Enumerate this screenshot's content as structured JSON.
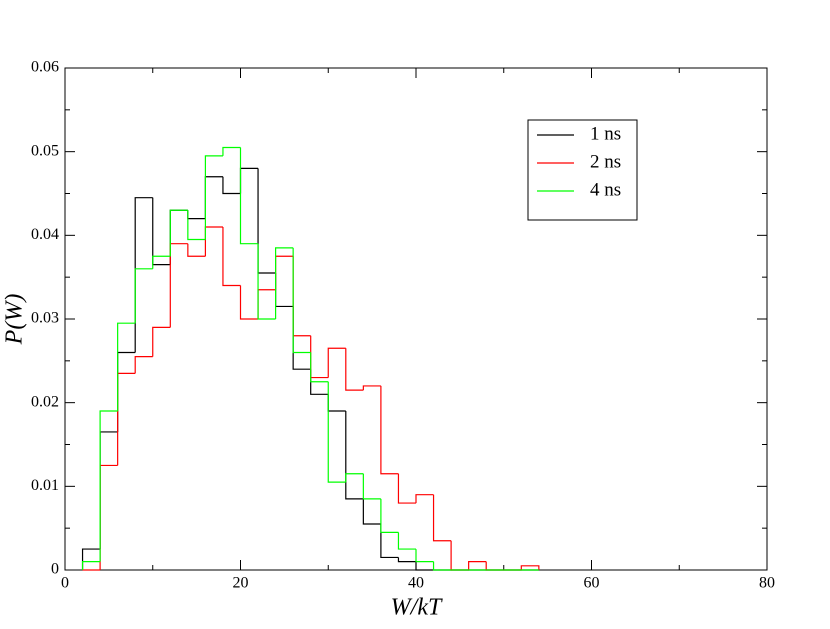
{
  "chart_data": {
    "type": "histogram",
    "xlabel": "W/kT",
    "ylabel": "P(W)",
    "bins": [
      2,
      4,
      6,
      8,
      10,
      12,
      14,
      16,
      18,
      20,
      22,
      24,
      26,
      28,
      30,
      32,
      34,
      36,
      38,
      40,
      42,
      44,
      46,
      48,
      50,
      52,
      54
    ],
    "series": [
      {
        "name": "1 ns",
        "color": "#000000",
        "values": [
          0.0025,
          0.0165,
          0.026,
          0.0445,
          0.0365,
          0.043,
          0.042,
          0.047,
          0.045,
          0.048,
          0.0355,
          0.0315,
          0.024,
          0.021,
          0.019,
          0.0085,
          0.0055,
          0.0015,
          0.001,
          0,
          0,
          0,
          0,
          0,
          0,
          0
        ]
      },
      {
        "name": "2 ns",
        "color": "#ff0000",
        "values": [
          0,
          0.0125,
          0.0235,
          0.0255,
          0.029,
          0.039,
          0.0375,
          0.041,
          0.034,
          0.03,
          0.0335,
          0.0375,
          0.028,
          0.023,
          0.0265,
          0.0215,
          0.022,
          0.0115,
          0.008,
          0.009,
          0.0035,
          0,
          0.001,
          0,
          0,
          0.0005
        ]
      },
      {
        "name": "4 ns",
        "color": "#00ff00",
        "values": [
          0.001,
          0.019,
          0.0295,
          0.036,
          0.0375,
          0.043,
          0.0395,
          0.0495,
          0.0505,
          0.039,
          0.03,
          0.0385,
          0.026,
          0.0225,
          0.0105,
          0.0115,
          0.0085,
          0.0045,
          0.0025,
          0.001,
          0,
          0,
          0,
          0,
          0,
          0
        ]
      }
    ],
    "xlim": [
      0,
      80
    ],
    "xticks": [
      0,
      20,
      40,
      60,
      80
    ],
    "xminorticks": [
      10,
      30,
      50,
      70
    ],
    "ylim": [
      0,
      0.06
    ],
    "yticks": [
      0,
      0.01,
      0.02,
      0.03,
      0.04,
      0.05,
      0.06
    ],
    "yminorticks": [
      0.005,
      0.015,
      0.025,
      0.035,
      0.045,
      0.055
    ],
    "legend": "upper right"
  }
}
